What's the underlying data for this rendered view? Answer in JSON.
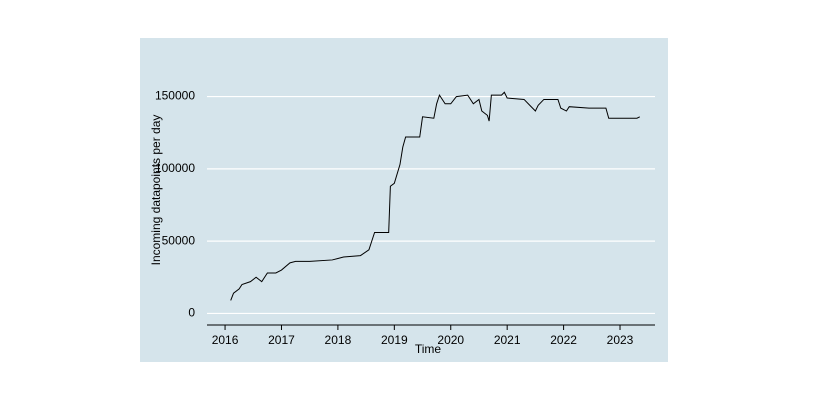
{
  "chart_data": {
    "type": "line",
    "xlabel": "Time",
    "ylabel": "Incoming datapoints per day",
    "x": [
      2016.1,
      2016.15,
      2016.25,
      2016.3,
      2016.45,
      2016.55,
      2016.65,
      2016.75,
      2016.9,
      2017.0,
      2017.15,
      2017.25,
      2017.5,
      2017.9,
      2018.0,
      2018.1,
      2018.4,
      2018.55,
      2018.6,
      2018.65,
      2018.9,
      2018.93,
      2019.0,
      2019.1,
      2019.15,
      2019.2,
      2019.45,
      2019.5,
      2019.7,
      2019.75,
      2019.8,
      2019.9,
      2020.0,
      2020.1,
      2020.3,
      2020.4,
      2020.5,
      2020.55,
      2020.65,
      2020.68,
      2020.72,
      2020.9,
      2020.95,
      2021.0,
      2021.3,
      2021.4,
      2021.5,
      2021.55,
      2021.65,
      2021.9,
      2021.95,
      2022.05,
      2022.1,
      2022.45,
      2022.75,
      2022.8,
      2023.3,
      2023.35
    ],
    "series": [
      {
        "color": "#000000",
        "values": [
          9000,
          14000,
          17000,
          20000,
          22000,
          25000,
          22000,
          28000,
          28000,
          30000,
          35000,
          36000,
          36000,
          37000,
          38000,
          39000,
          40000,
          44000,
          50000,
          56000,
          56000,
          88000,
          90000,
          103000,
          115000,
          122000,
          122000,
          136000,
          135000,
          145000,
          151000,
          145000,
          145000,
          150000,
          151000,
          145000,
          148000,
          140000,
          137000,
          133000,
          151000,
          151000,
          153000,
          149000,
          148000,
          144000,
          140000,
          144000,
          148000,
          148000,
          142000,
          140000,
          143000,
          142000,
          142000,
          135000,
          135000,
          136000
        ]
      }
    ],
    "xlim": [
      2015.68,
      2023.62
    ],
    "xticks": [
      2016,
      2017,
      2018,
      2019,
      2020,
      2021,
      2022,
      2023
    ],
    "ylim": [
      -8000,
      158000
    ],
    "yticks": [
      0,
      50000,
      100000,
      150000
    ],
    "grid": true,
    "background": "#d5e4eb"
  }
}
